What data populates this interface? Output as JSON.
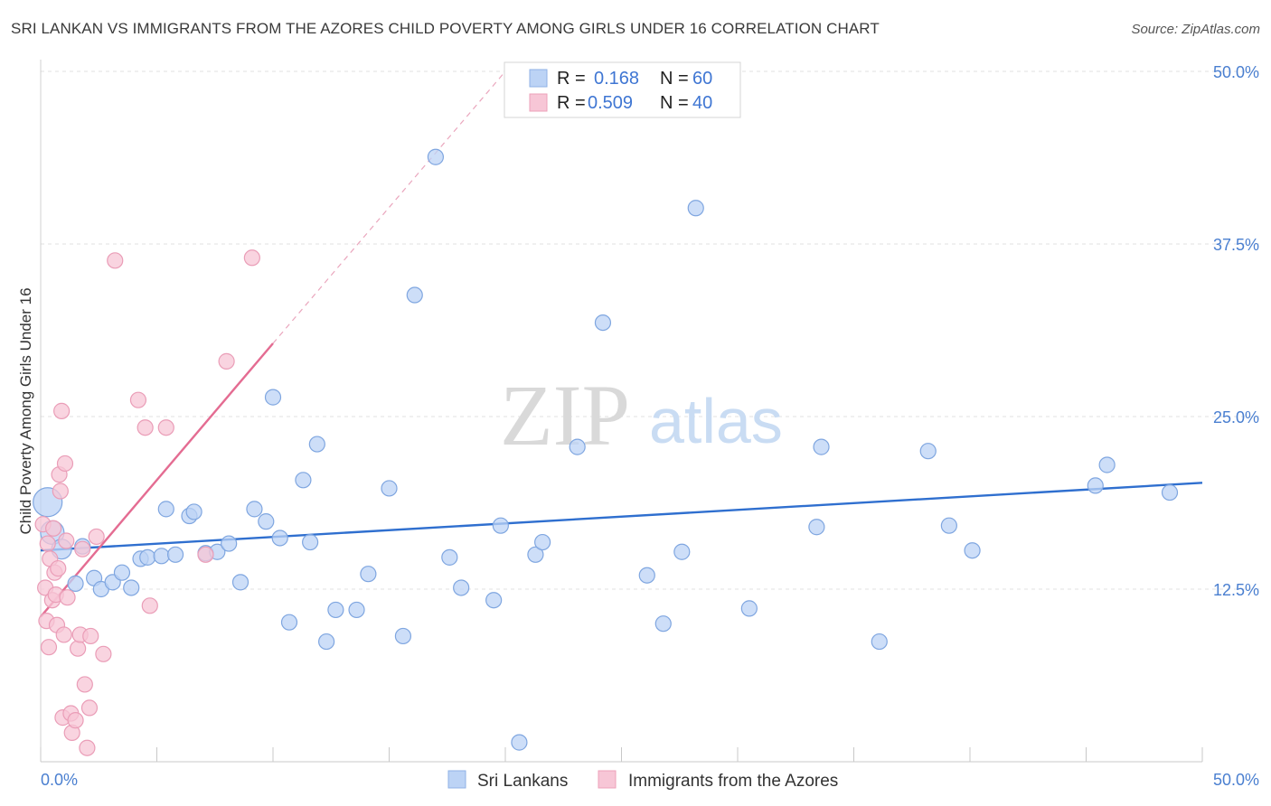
{
  "title": "SRI LANKAN VS IMMIGRANTS FROM THE AZORES CHILD POVERTY AMONG GIRLS UNDER 16 CORRELATION CHART",
  "source": "Source: ZipAtlas.com",
  "watermark": {
    "zip": "ZIP",
    "atlas": "atlas"
  },
  "legend": {
    "rows": [
      {
        "r_label": "R = ",
        "r_value": "0.168",
        "n_label": "N = ",
        "n_value": "60"
      },
      {
        "r_label": "R = ",
        "r_value": "0.509",
        "n_label": "N = ",
        "n_value": "40"
      }
    ]
  },
  "chart_data": {
    "type": "scatter",
    "title": "SRI LANKAN VS IMMIGRANTS FROM THE AZORES CHILD POVERTY AMONG GIRLS UNDER 16 CORRELATION CHART",
    "xlabel": "",
    "ylabel": "Child Poverty Among Girls Under 16",
    "xlim": [
      0,
      50
    ],
    "ylim": [
      0,
      50
    ],
    "x_tick_labels": [
      "0.0%",
      "50.0%"
    ],
    "y_tick_labels": [
      "12.5%",
      "25.0%",
      "37.5%",
      "50.0%"
    ],
    "y_ticks": [
      12.5,
      25.0,
      37.5,
      50.0
    ],
    "grid": true,
    "legend_placement": "top-center",
    "colors": {
      "sri_lankans": "#3f76d3",
      "azores": "#e87096",
      "sri_fill": "#bcd3f5",
      "azores_fill": "#f7c6d6"
    },
    "series": [
      {
        "name": "Sri Lankans",
        "trend": {
          "x": [
            0,
            50
          ],
          "y": [
            15.3,
            20.2
          ]
        },
        "points": [
          [
            0.3,
            18.8
          ],
          [
            0.5,
            16.6
          ],
          [
            0.9,
            15.4
          ],
          [
            1.5,
            12.9
          ],
          [
            1.8,
            15.6
          ],
          [
            2.3,
            13.3
          ],
          [
            2.6,
            12.5
          ],
          [
            3.1,
            13.0
          ],
          [
            3.5,
            13.7
          ],
          [
            3.9,
            12.6
          ],
          [
            4.3,
            14.7
          ],
          [
            4.6,
            14.8
          ],
          [
            5.2,
            14.9
          ],
          [
            5.4,
            18.3
          ],
          [
            5.8,
            15.0
          ],
          [
            6.4,
            17.8
          ],
          [
            6.6,
            18.1
          ],
          [
            7.1,
            15.1
          ],
          [
            7.6,
            15.2
          ],
          [
            8.1,
            15.8
          ],
          [
            8.6,
            13.0
          ],
          [
            9.2,
            18.3
          ],
          [
            9.7,
            17.4
          ],
          [
            10.0,
            26.4
          ],
          [
            10.3,
            16.2
          ],
          [
            10.7,
            10.1
          ],
          [
            11.3,
            20.4
          ],
          [
            11.6,
            15.9
          ],
          [
            11.9,
            23.0
          ],
          [
            12.3,
            8.7
          ],
          [
            12.7,
            11.0
          ],
          [
            13.6,
            11.0
          ],
          [
            14.1,
            13.6
          ],
          [
            15.0,
            19.8
          ],
          [
            15.6,
            9.1
          ],
          [
            16.1,
            33.8
          ],
          [
            17.0,
            43.8
          ],
          [
            17.6,
            14.8
          ],
          [
            18.1,
            12.6
          ],
          [
            19.5,
            11.7
          ],
          [
            19.8,
            17.1
          ],
          [
            20.6,
            1.4
          ],
          [
            21.3,
            15.0
          ],
          [
            21.6,
            15.9
          ],
          [
            23.1,
            22.8
          ],
          [
            24.2,
            31.8
          ],
          [
            26.1,
            13.5
          ],
          [
            26.8,
            10.0
          ],
          [
            27.6,
            15.2
          ],
          [
            28.2,
            40.1
          ],
          [
            30.5,
            11.1
          ],
          [
            33.4,
            17.0
          ],
          [
            33.6,
            22.8
          ],
          [
            36.1,
            8.7
          ],
          [
            38.2,
            22.5
          ],
          [
            39.1,
            17.1
          ],
          [
            40.1,
            15.3
          ],
          [
            45.4,
            20.0
          ],
          [
            45.9,
            21.5
          ],
          [
            48.6,
            19.5
          ]
        ]
      },
      {
        "name": "Immigrants from the Azores",
        "trend": {
          "x": [
            0,
            10.0
          ],
          "y": [
            10.5,
            30.3
          ]
        },
        "trend_ext": {
          "x": [
            10.0,
            20.0
          ],
          "y": [
            30.3,
            50.0
          ]
        },
        "points": [
          [
            0.1,
            17.2
          ],
          [
            0.2,
            12.6
          ],
          [
            0.25,
            10.2
          ],
          [
            0.35,
            8.3
          ],
          [
            0.4,
            14.7
          ],
          [
            0.5,
            11.7
          ],
          [
            0.55,
            16.9
          ],
          [
            0.6,
            13.7
          ],
          [
            0.65,
            12.1
          ],
          [
            0.7,
            9.9
          ],
          [
            0.75,
            14.0
          ],
          [
            0.8,
            20.8
          ],
          [
            0.85,
            19.6
          ],
          [
            0.9,
            25.4
          ],
          [
            0.95,
            3.2
          ],
          [
            1.0,
            9.2
          ],
          [
            1.05,
            21.6
          ],
          [
            1.1,
            16.0
          ],
          [
            1.15,
            11.9
          ],
          [
            1.3,
            3.5
          ],
          [
            1.35,
            2.1
          ],
          [
            1.5,
            3.0
          ],
          [
            1.6,
            8.2
          ],
          [
            1.7,
            9.2
          ],
          [
            1.8,
            15.4
          ],
          [
            1.9,
            5.6
          ],
          [
            2.0,
            1.0
          ],
          [
            2.1,
            3.9
          ],
          [
            2.15,
            9.1
          ],
          [
            2.4,
            16.3
          ],
          [
            2.7,
            7.8
          ],
          [
            3.2,
            36.3
          ],
          [
            4.2,
            26.2
          ],
          [
            4.5,
            24.2
          ],
          [
            4.7,
            11.3
          ],
          [
            5.4,
            24.2
          ],
          [
            7.1,
            15.0
          ],
          [
            8.0,
            29.0
          ],
          [
            9.1,
            36.5
          ],
          [
            0.3,
            15.8
          ]
        ]
      }
    ]
  },
  "bottom_legend": [
    "Sri Lankans",
    "Immigrants from the Azores"
  ]
}
